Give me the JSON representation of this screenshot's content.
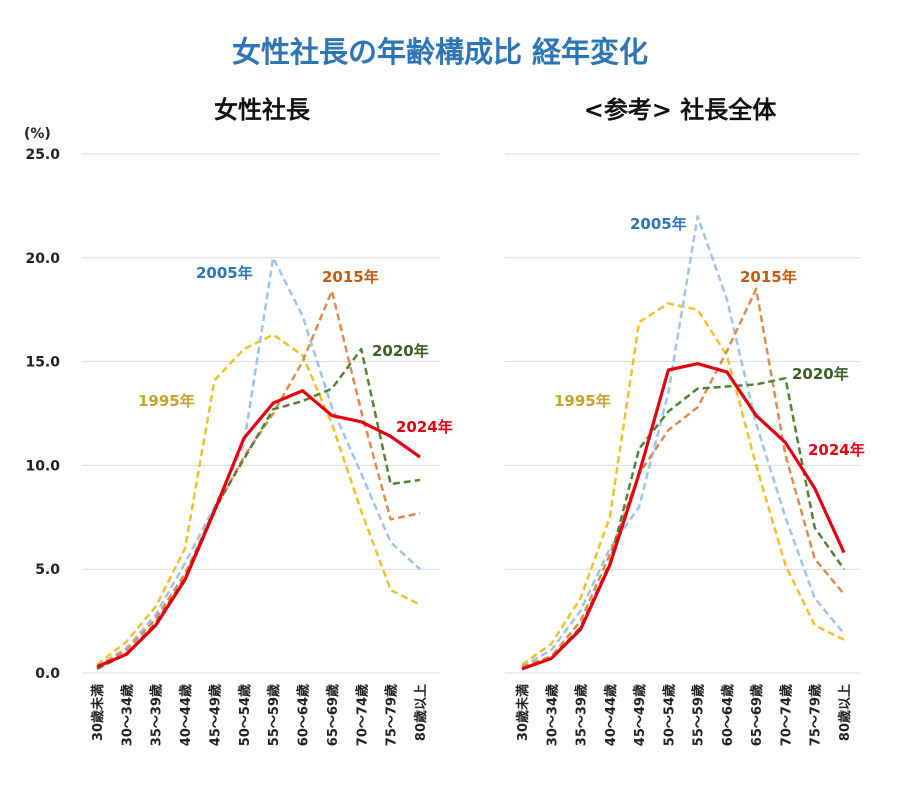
{
  "title": "女性社長の年齢構成比  経年変化",
  "unit": "(%)",
  "chart_data": [
    {
      "type": "line",
      "title": "女性社長",
      "categories": [
        "30歳未満",
        "30～34歳",
        "35～39歳",
        "40～44歳",
        "45～49歳",
        "50～54歳",
        "55～59歳",
        "60～64歳",
        "65～69歳",
        "70～74歳",
        "75～79歳",
        "80歳以上"
      ],
      "ylim": [
        0,
        25
      ],
      "yticks": [
        "0.0",
        "5.0",
        "10.0",
        "15.0",
        "20.0",
        "25.0"
      ],
      "grid": true,
      "series": [
        {
          "name": "1995年",
          "color": "#f5bf2a",
          "label_color": "#c9a227",
          "dashed": true,
          "values": [
            0.4,
            1.5,
            3.2,
            6.0,
            14.1,
            15.6,
            16.3,
            15.3,
            12.0,
            7.8,
            4.0,
            3.3
          ]
        },
        {
          "name": "2005年",
          "color": "#9dc3e6",
          "label_color": "#2e75b6",
          "dashed": true,
          "values": [
            0.3,
            1.2,
            2.8,
            5.3,
            8.0,
            11.0,
            20.0,
            17.2,
            12.8,
            9.6,
            6.3,
            5.0
          ]
        },
        {
          "name": "2015年",
          "color": "#e08a4e",
          "label_color": "#c55a11",
          "dashed": true,
          "values": [
            0.3,
            1.1,
            2.6,
            4.8,
            7.8,
            10.4,
            12.5,
            15.0,
            18.4,
            12.6,
            7.4,
            7.7
          ]
        },
        {
          "name": "2020年",
          "color": "#548235",
          "label_color": "#3a5f24",
          "dashed": true,
          "values": [
            0.2,
            0.9,
            2.4,
            4.6,
            7.9,
            10.3,
            12.7,
            13.1,
            13.7,
            15.6,
            9.1,
            9.3
          ]
        },
        {
          "name": "2024年",
          "color": "#e60012",
          "label_color": "#e60012",
          "dashed": false,
          "values": [
            0.3,
            0.9,
            2.3,
            4.5,
            7.8,
            11.3,
            13.0,
            13.6,
            12.4,
            12.1,
            11.4,
            10.4
          ]
        }
      ]
    },
    {
      "type": "line",
      "title": "<参考> 社長全体",
      "categories": [
        "30歳未満",
        "30～34歳",
        "35～39歳",
        "40～44歳",
        "45～49歳",
        "50～54歳",
        "55～59歳",
        "60～64歳",
        "65～69歳",
        "70～74歳",
        "75～79歳",
        "80歳以上"
      ],
      "ylim": [
        0,
        25
      ],
      "grid": true,
      "series": [
        {
          "name": "1995年",
          "color": "#f5bf2a",
          "label_color": "#c9a227",
          "dashed": true,
          "values": [
            0.4,
            1.4,
            3.6,
            7.5,
            16.9,
            17.8,
            17.5,
            15.3,
            10.0,
            5.2,
            2.3,
            1.6
          ]
        },
        {
          "name": "2005年",
          "color": "#9dc3e6",
          "label_color": "#2e75b6",
          "dashed": true,
          "values": [
            0.3,
            1.1,
            3.0,
            6.0,
            8.0,
            13.5,
            22.0,
            18.0,
            12.0,
            7.5,
            3.6,
            1.9
          ]
        },
        {
          "name": "2015年",
          "color": "#e08a4e",
          "label_color": "#c55a11",
          "dashed": true,
          "values": [
            0.3,
            0.8,
            2.5,
            5.7,
            9.6,
            11.7,
            12.8,
            15.5,
            18.5,
            10.5,
            5.5,
            3.8
          ]
        },
        {
          "name": "2020年",
          "color": "#548235",
          "label_color": "#3a5f24",
          "dashed": true,
          "values": [
            0.2,
            0.7,
            2.2,
            5.3,
            10.8,
            12.6,
            13.7,
            13.8,
            13.9,
            14.2,
            7.0,
            5.0
          ]
        },
        {
          "name": "2024年",
          "color": "#e60012",
          "label_color": "#e60012",
          "dashed": false,
          "values": [
            0.2,
            0.7,
            2.1,
            5.2,
            9.6,
            14.6,
            14.9,
            14.5,
            12.4,
            11.1,
            8.9,
            5.8
          ]
        }
      ]
    }
  ]
}
